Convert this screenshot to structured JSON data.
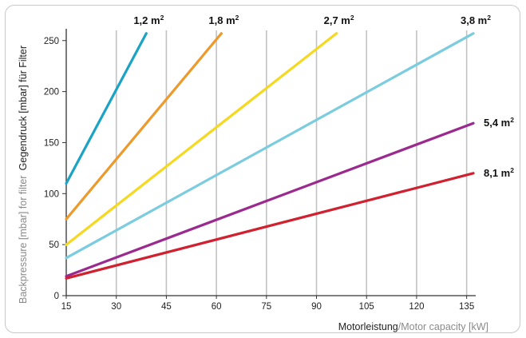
{
  "chart_data": {
    "type": "line",
    "xlabel": {
      "de": "Motorleistung",
      "sep": "/",
      "en": "Motor capacity",
      "unit": "[kW]"
    },
    "ylabel": {
      "en": "Backpressure [mbar] for filter",
      "de": "Gegendruck [mbar] für Filter"
    },
    "xlim": [
      15,
      137
    ],
    "ylim": [
      0,
      260
    ],
    "x_ticks": [
      "15",
      "30",
      "45",
      "60",
      "75",
      "90",
      "105",
      "120",
      "135"
    ],
    "y_ticks": [
      "0",
      "50",
      "100",
      "150",
      "200",
      "250"
    ],
    "grid": "vertical",
    "series": [
      {
        "name": "1,2 m²",
        "label": "1,2 m",
        "sup": "2",
        "color": "#1aa3c4",
        "points": [
          [
            15,
            110
          ],
          [
            39,
            257
          ]
        ]
      },
      {
        "name": "1,8 m²",
        "label": "1,8 m",
        "sup": "2",
        "color": "#ec9a2c",
        "points": [
          [
            15,
            75
          ],
          [
            61.5,
            257
          ]
        ]
      },
      {
        "name": "2,7 m²",
        "label": "2,7 m",
        "sup": "2",
        "color": "#f5d820",
        "points": [
          [
            15,
            50
          ],
          [
            96,
            257
          ]
        ]
      },
      {
        "name": "3,8 m²",
        "label": "3,8 m",
        "sup": "2",
        "color": "#7ccce0",
        "points": [
          [
            15,
            37
          ],
          [
            137,
            257
          ]
        ]
      },
      {
        "name": "5,4 m²",
        "label": "5,4 m",
        "sup": "2",
        "color": "#9b2a8e",
        "points": [
          [
            15,
            19
          ],
          [
            137,
            169
          ]
        ]
      },
      {
        "name": "8,1 m²",
        "label": "8,1 m",
        "sup": "2",
        "color": "#cf2130",
        "points": [
          [
            15,
            17
          ],
          [
            137,
            120
          ]
        ]
      }
    ],
    "colors": {
      "grid": "#c2c2c2",
      "axis": "#333333",
      "axis_text_de": "#222222",
      "axis_text_en": "#8a8a8a",
      "frame": "#c8c8c8"
    }
  }
}
